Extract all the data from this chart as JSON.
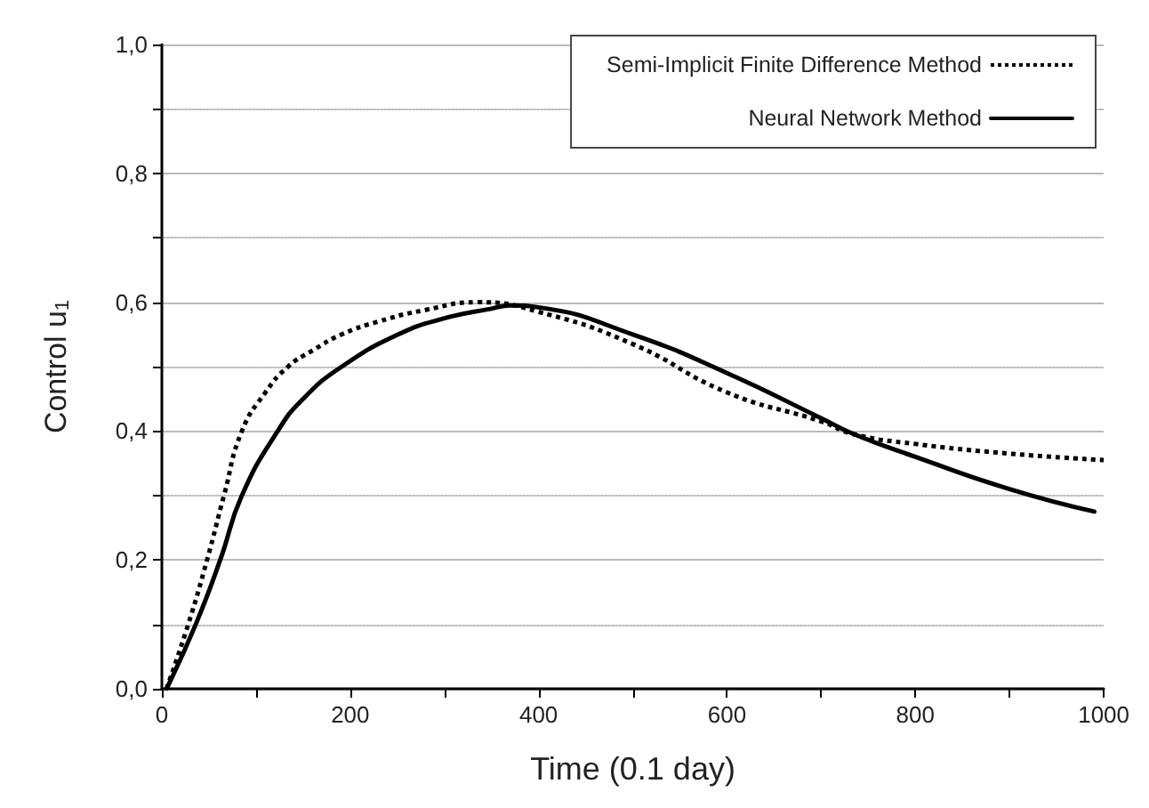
{
  "chart_data": {
    "type": "line",
    "xlabel": "Time (0.1 day)",
    "ylabel": "Control u$_{1}$",
    "xlim": [
      0,
      1000
    ],
    "xticks": [
      0,
      {
        "value": 100,
        "label": null
      },
      200,
      {
        "value": 300,
        "label": null
      },
      400,
      {
        "value": 500,
        "label": null
      },
      600,
      {
        "value": 700,
        "label": null
      },
      800,
      {
        "value": 900,
        "label": null
      },
      1000
    ],
    "ylim": [
      0,
      1
    ],
    "yticks": [
      {
        "value": 0,
        "label": "0,0"
      },
      {
        "value": 0.1,
        "label": null
      },
      {
        "value": 0.2,
        "label": "0,2"
      },
      {
        "value": 0.3,
        "label": null
      },
      {
        "value": 0.4,
        "label": "0,4"
      },
      {
        "value": 0.5,
        "label": null
      },
      {
        "value": 0.6,
        "label": "0,6"
      },
      {
        "value": 0.7,
        "label": null
      },
      {
        "value": 0.8,
        "label": "0,8"
      },
      {
        "value": 0.9,
        "label": null
      },
      {
        "value": 1,
        "label": "1,0"
      }
    ],
    "grid": "y",
    "legend": "top right",
    "marker": "none",
    "series": [
      {
        "name": "Semi-Implicit Finite Difference Method",
        "color": "#000000",
        "line_style": "dotted",
        "x": [
          5,
          28,
          48,
          66,
          85,
          110,
          134,
          160,
          191,
          230,
          280,
          335,
          400,
          500,
          600,
          700,
          735,
          800,
          900,
          1000
        ],
        "values": [
          0,
          0.1,
          0.2,
          0.3,
          0.4,
          0.46,
          0.5,
          0.525,
          0.55,
          0.57,
          0.588,
          0.6,
          0.585,
          0.535,
          0.46,
          0.415,
          0.395,
          0.38,
          0.365,
          0.355
        ]
      },
      {
        "name": "Neural Network Method",
        "color": "#000000",
        "line_style": "solid",
        "x": [
          5,
          36,
          62,
          85,
          123,
          150,
          191,
          251,
          300,
          350,
          370,
          400,
          500,
          600,
          700,
          735,
          800,
          900,
          990
        ],
        "values": [
          0,
          0.1,
          0.2,
          0.3,
          0.4,
          0.45,
          0.5,
          0.55,
          0.575,
          0.59,
          0.595,
          0.592,
          0.55,
          0.49,
          0.42,
          0.395,
          0.36,
          0.31,
          0.275
        ]
      }
    ]
  }
}
